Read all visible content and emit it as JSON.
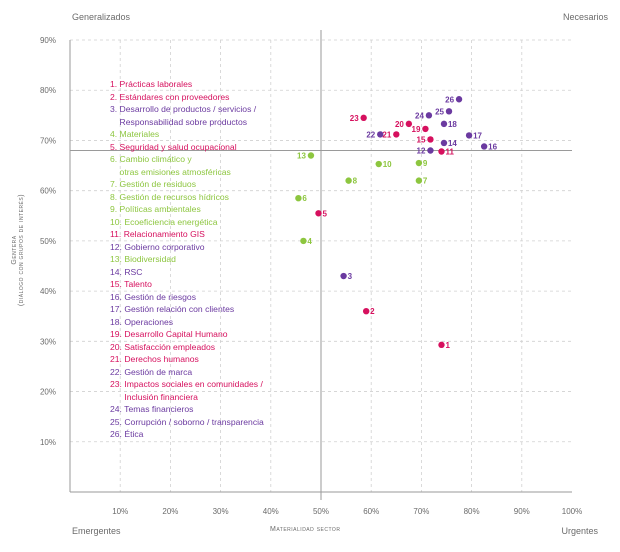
{
  "chart_data": {
    "type": "scatter",
    "corners": {
      "top_left": "Generalizados",
      "top_right": "Necesarios",
      "bottom_left": "Emergentes",
      "bottom_right": "Urgentes"
    },
    "xlabel": "Materialidad sector",
    "ylabel_line1": "Gentera",
    "ylabel_line2": "(diálogo con grupos de interés)",
    "xlim": [
      0,
      100
    ],
    "ylim": [
      0,
      90
    ],
    "quadrant_lines": {
      "x": 50,
      "y": 68
    },
    "grid": true,
    "x_ticks": [
      "10%",
      "20%",
      "30%",
      "40%",
      "50%",
      "60%",
      "70%",
      "80%",
      "90%",
      "100%"
    ],
    "y_ticks": [
      "10%",
      "20%",
      "30%",
      "40%",
      "50%",
      "60%",
      "70%",
      "80%",
      "90%"
    ],
    "colors": {
      "pink": "#d6105e",
      "green": "#8dc63f",
      "purple": "#6b3aa0",
      "axis": "#9a9a9a",
      "grid": "#d0d0d0"
    },
    "points": [
      {
        "label": "1",
        "x": 74.0,
        "y": 29.3,
        "color": "pink"
      },
      {
        "label": "2",
        "x": 59.0,
        "y": 36.0,
        "color": "pink"
      },
      {
        "label": "3",
        "x": 54.5,
        "y": 43.0,
        "color": "purple"
      },
      {
        "label": "4",
        "x": 46.5,
        "y": 50.0,
        "color": "green"
      },
      {
        "label": "5",
        "x": 49.5,
        "y": 55.5,
        "color": "pink"
      },
      {
        "label": "6",
        "x": 45.5,
        "y": 58.5,
        "color": "green"
      },
      {
        "label": "7",
        "x": 69.5,
        "y": 62.0,
        "color": "green"
      },
      {
        "label": "8",
        "x": 55.5,
        "y": 62.0,
        "color": "green"
      },
      {
        "label": "9",
        "x": 69.5,
        "y": 65.5,
        "color": "green"
      },
      {
        "label": "10",
        "x": 61.5,
        "y": 65.3,
        "color": "green"
      },
      {
        "label": "11",
        "x": 74.0,
        "y": 67.8,
        "color": "pink"
      },
      {
        "label": "12",
        "x": 71.8,
        "y": 68.0,
        "color": "purple"
      },
      {
        "label": "13",
        "x": 48.0,
        "y": 67.0,
        "color": "green"
      },
      {
        "label": "14",
        "x": 74.5,
        "y": 69.5,
        "color": "purple"
      },
      {
        "label": "15",
        "x": 71.8,
        "y": 70.2,
        "color": "pink"
      },
      {
        "label": "16",
        "x": 82.5,
        "y": 68.8,
        "color": "purple"
      },
      {
        "label": "17",
        "x": 79.5,
        "y": 71.0,
        "color": "purple"
      },
      {
        "label": "18",
        "x": 74.5,
        "y": 73.3,
        "color": "purple"
      },
      {
        "label": "19",
        "x": 70.8,
        "y": 72.3,
        "color": "pink"
      },
      {
        "label": "20",
        "x": 67.5,
        "y": 73.3,
        "color": "pink"
      },
      {
        "label": "21",
        "x": 65.0,
        "y": 71.2,
        "color": "pink"
      },
      {
        "label": "22",
        "x": 61.8,
        "y": 71.2,
        "color": "purple"
      },
      {
        "label": "23",
        "x": 58.5,
        "y": 74.5,
        "color": "pink"
      },
      {
        "label": "24",
        "x": 71.5,
        "y": 75.0,
        "color": "purple"
      },
      {
        "label": "25",
        "x": 75.5,
        "y": 75.8,
        "color": "purple"
      },
      {
        "label": "26",
        "x": 77.5,
        "y": 78.2,
        "color": "purple"
      }
    ],
    "legend": [
      {
        "text": "1. Prácticas laborales",
        "color": "pink"
      },
      {
        "text": "2. Estándares con proveedores",
        "color": "pink"
      },
      {
        "text": "3. Desarrollo de productos / servicios /",
        "color": "purple"
      },
      {
        "text": "    Responsabilidad sobre productos",
        "color": "purple"
      },
      {
        "text": "4. Materiales",
        "color": "green"
      },
      {
        "text": "5. Seguridad y salud ocupacional",
        "color": "pink"
      },
      {
        "text": "6. Cambio climático y",
        "color": "green"
      },
      {
        "text": "    otras emisiones atmosféricas",
        "color": "green"
      },
      {
        "text": "7. Gestión de residuos",
        "color": "green"
      },
      {
        "text": "8. Gestión de recursos hídricos",
        "color": "green"
      },
      {
        "text": "9. Políticas ambientales",
        "color": "green"
      },
      {
        "text": "10. Ecoeficiencia energética",
        "color": "green"
      },
      {
        "text": "11. Relacionamiento GIS",
        "color": "pink"
      },
      {
        "text": "12. Gobierno corporativo",
        "color": "purple"
      },
      {
        "text": "13. Biodiversidad",
        "color": "green"
      },
      {
        "text": "14. RSC",
        "color": "purple"
      },
      {
        "text": "15. Talento",
        "color": "pink"
      },
      {
        "text": "16. Gestión de riesgos",
        "color": "purple"
      },
      {
        "text": "17. Gestión relación con clientes",
        "color": "purple"
      },
      {
        "text": "18. Operaciones",
        "color": "purple"
      },
      {
        "text": "19. Desarrollo Capital Humano",
        "color": "pink"
      },
      {
        "text": "20. Satisfacción empleados",
        "color": "pink"
      },
      {
        "text": "21. Derechos humanos",
        "color": "pink"
      },
      {
        "text": "22. Gestión de marca",
        "color": "purple"
      },
      {
        "text": "23. Impactos sociales en comunidades /",
        "color": "pink"
      },
      {
        "text": "      Inclusión financiera",
        "color": "pink"
      },
      {
        "text": "24. Temas financieros",
        "color": "purple"
      },
      {
        "text": "25. Corrupción / soborno / transparencia",
        "color": "purple"
      },
      {
        "text": "26. Ética",
        "color": "purple"
      }
    ]
  }
}
